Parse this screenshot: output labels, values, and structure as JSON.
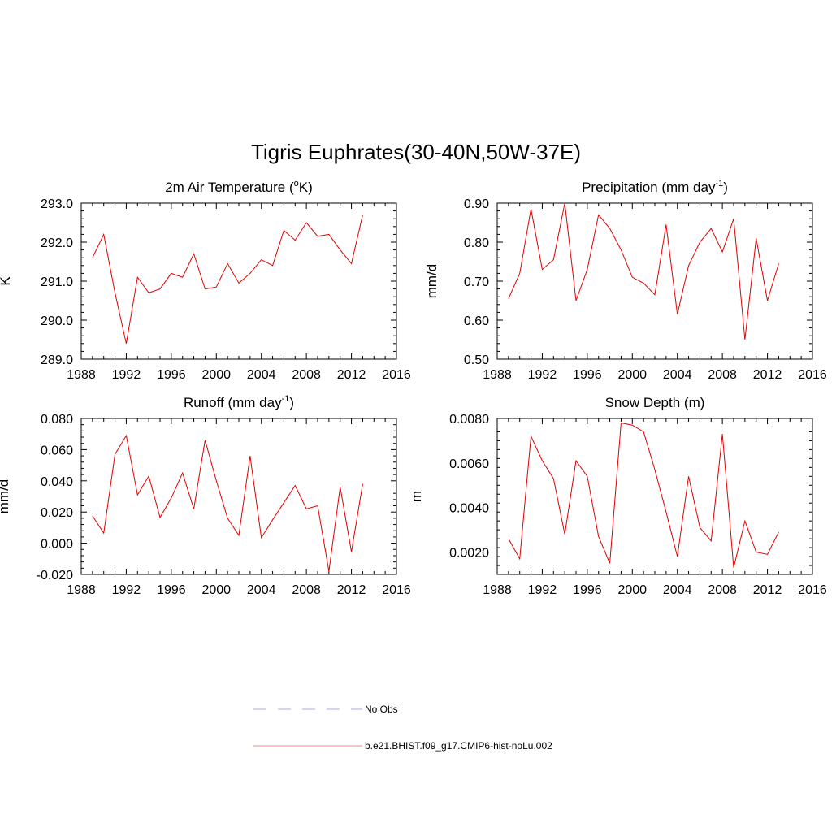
{
  "title": "Tigris Euphrates(30-40N,50W-37E)",
  "legend": [
    {
      "label": "No Obs",
      "color": "#aaaaee",
      "dash": "dashed"
    },
    {
      "label": "b.e21.BHIST.f09_g17.CMIP6-hist-noLu.002",
      "color": "#ee8888",
      "dash": "solid"
    }
  ],
  "series_color": "#e00000",
  "chart_data": [
    {
      "type": "line",
      "title": "2m Air Temperature (",
      "title_sup": "o",
      "title_end": "K)",
      "ylabel": "K",
      "xlim": [
        1988,
        2016
      ],
      "ylim": [
        289.0,
        293.0
      ],
      "xticks": [
        "1988",
        "1992",
        "1996",
        "2000",
        "2004",
        "2008",
        "2012",
        "2016"
      ],
      "yticks": [
        "289.0",
        "290.0",
        "291.0",
        "292.0",
        "293.0"
      ],
      "ytick_values": [
        289.0,
        290.0,
        291.0,
        292.0,
        293.0
      ],
      "x": [
        1989,
        1990,
        1991,
        1992,
        1993,
        1994,
        1995,
        1996,
        1997,
        1998,
        1999,
        2000,
        2001,
        2002,
        2003,
        2004,
        2005,
        2006,
        2007,
        2008,
        2009,
        2010,
        2011,
        2012,
        2013
      ],
      "values": [
        291.6,
        292.2,
        290.7,
        289.4,
        291.1,
        290.7,
        290.8,
        291.2,
        291.1,
        291.7,
        290.8,
        290.85,
        291.45,
        290.95,
        291.2,
        291.55,
        291.4,
        292.3,
        292.05,
        292.5,
        292.15,
        292.2,
        291.8,
        291.45,
        292.7
      ]
    },
    {
      "type": "line",
      "title": "Precipitation (mm day",
      "title_sup": "-1",
      "title_end": ")",
      "ylabel": "mm/d",
      "xlim": [
        1988,
        2016
      ],
      "ylim": [
        0.5,
        0.9
      ],
      "xticks": [
        "1988",
        "1992",
        "1996",
        "2000",
        "2004",
        "2008",
        "2012",
        "2016"
      ],
      "yticks": [
        "0.50",
        "0.60",
        "0.70",
        "0.80",
        "0.90"
      ],
      "ytick_values": [
        0.5,
        0.6,
        0.7,
        0.8,
        0.9
      ],
      "x": [
        1989,
        1990,
        1991,
        1992,
        1993,
        1994,
        1995,
        1996,
        1997,
        1998,
        1999,
        2000,
        2001,
        2002,
        2003,
        2004,
        2005,
        2006,
        2007,
        2008,
        2009,
        2010,
        2011,
        2012,
        2013
      ],
      "values": [
        0.655,
        0.72,
        0.885,
        0.73,
        0.755,
        0.9,
        0.65,
        0.73,
        0.87,
        0.835,
        0.78,
        0.71,
        0.695,
        0.665,
        0.845,
        0.615,
        0.74,
        0.8,
        0.835,
        0.775,
        0.86,
        0.55,
        0.81,
        0.65,
        0.745
      ]
    },
    {
      "type": "line",
      "title": "Runoff (mm day",
      "title_sup": "-1",
      "title_end": ")",
      "ylabel": "mm/d",
      "xlim": [
        1988,
        2016
      ],
      "ylim": [
        -0.02,
        0.08
      ],
      "xticks": [
        "1988",
        "1992",
        "1996",
        "2000",
        "2004",
        "2008",
        "2012",
        "2016"
      ],
      "yticks": [
        "-0.020",
        "0.000",
        "0.020",
        "0.040",
        "0.060",
        "0.080"
      ],
      "ytick_values": [
        -0.02,
        0.0,
        0.02,
        0.04,
        0.06,
        0.08
      ],
      "x": [
        1989,
        1990,
        1991,
        1992,
        1993,
        1994,
        1995,
        1996,
        1997,
        1998,
        1999,
        2000,
        2001,
        2002,
        2003,
        2004,
        2005,
        2006,
        2007,
        2008,
        2009,
        2010,
        2011,
        2012,
        2013
      ],
      "values": [
        0.0175,
        0.0065,
        0.057,
        0.069,
        0.031,
        0.043,
        0.0165,
        0.029,
        0.045,
        0.022,
        0.066,
        0.04,
        0.016,
        0.005,
        0.056,
        0.0035,
        0.015,
        0.026,
        0.037,
        0.022,
        0.024,
        -0.018,
        0.036,
        -0.0055,
        0.038
      ]
    },
    {
      "type": "line",
      "title": "Snow Depth (m)",
      "title_sup": "",
      "title_end": "",
      "ylabel": "m",
      "xlim": [
        1988,
        2016
      ],
      "ylim": [
        0.001,
        0.008
      ],
      "xticks": [
        "1988",
        "1992",
        "1996",
        "2000",
        "2004",
        "2008",
        "2012",
        "2016"
      ],
      "yticks": [
        "0.0020",
        "0.0040",
        "0.0060",
        "0.0080"
      ],
      "ytick_values": [
        0.002,
        0.004,
        0.006,
        0.008
      ],
      "x": [
        1989,
        1990,
        1991,
        1992,
        1993,
        1994,
        1995,
        1996,
        1997,
        1998,
        1999,
        2000,
        2001,
        2002,
        2003,
        2004,
        2005,
        2006,
        2007,
        2008,
        2009,
        2010,
        2011,
        2012,
        2013
      ],
      "values": [
        0.0026,
        0.0017,
        0.0072,
        0.0061,
        0.0053,
        0.0028,
        0.0061,
        0.0054,
        0.0027,
        0.0015,
        0.0078,
        0.0077,
        0.0074,
        0.0057,
        0.0038,
        0.0018,
        0.0054,
        0.0031,
        0.0025,
        0.0073,
        0.0013,
        0.0034,
        0.002,
        0.0019,
        0.0029
      ]
    }
  ]
}
